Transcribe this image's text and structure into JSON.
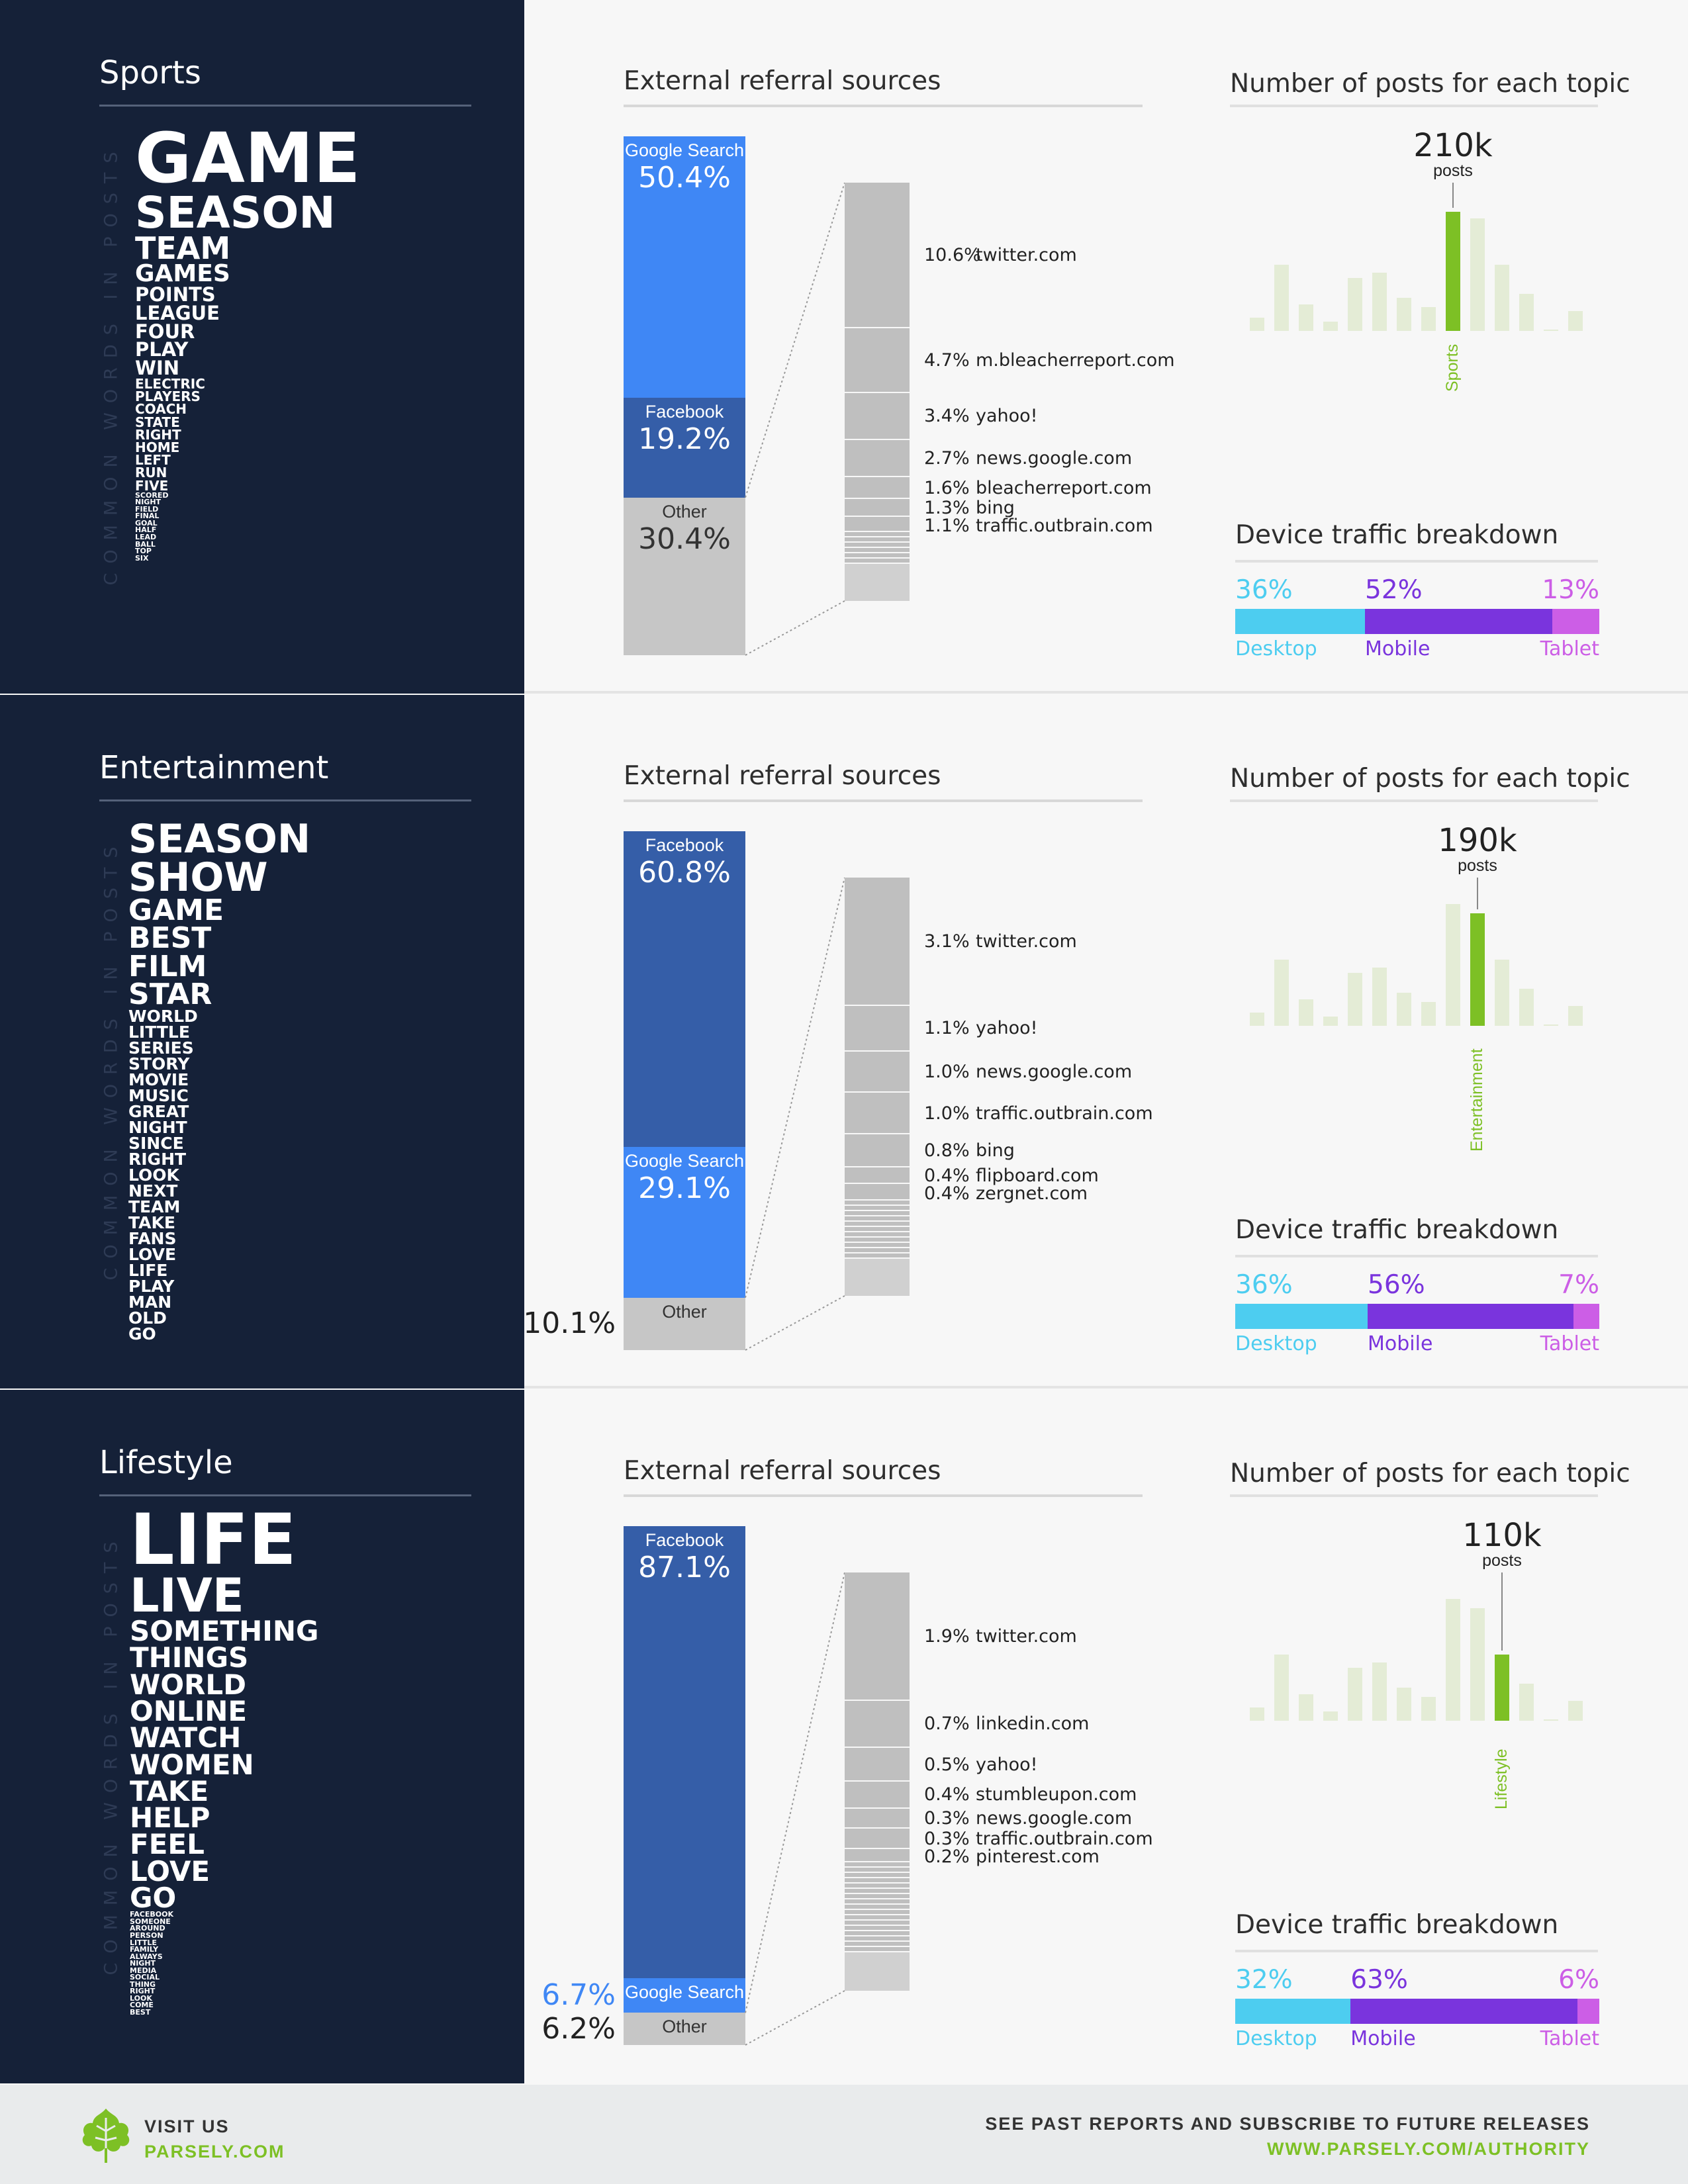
{
  "chart_data": [
    {
      "type": "bar",
      "topic": "Sports",
      "words_label": "COMMON WORDS IN POSTS",
      "words": [
        {
          "text": "GAME",
          "size": 104
        },
        {
          "text": "SEASON",
          "size": 66
        },
        {
          "text": "TEAM",
          "size": 46
        },
        {
          "text": "GAMES",
          "size": 36
        },
        {
          "text": "POINTS",
          "size": 29
        },
        {
          "text": "LEAGUE",
          "size": 29
        },
        {
          "text": "FOUR",
          "size": 29
        },
        {
          "text": "PLAY",
          "size": 29
        },
        {
          "text": "WIN",
          "size": 29
        },
        {
          "text": "ELECTRIC",
          "size": 20
        },
        {
          "text": "PLAYERS",
          "size": 20
        },
        {
          "text": "COACH",
          "size": 20
        },
        {
          "text": "STATE",
          "size": 20
        },
        {
          "text": "RIGHT",
          "size": 20
        },
        {
          "text": "HOME",
          "size": 20
        },
        {
          "text": "LEFT",
          "size": 20
        },
        {
          "text": "RUN",
          "size": 20
        },
        {
          "text": "FIVE",
          "size": 20
        },
        {
          "text": "SCORED",
          "size": 11
        },
        {
          "text": "NIGHT",
          "size": 11
        },
        {
          "text": "FIELD",
          "size": 11
        },
        {
          "text": "FINAL",
          "size": 11
        },
        {
          "text": "GOAL",
          "size": 11
        },
        {
          "text": "HALF",
          "size": 11
        },
        {
          "text": "LEAD",
          "size": 11
        },
        {
          "text": "BALL",
          "size": 11
        },
        {
          "text": "TOP",
          "size": 11
        },
        {
          "text": "SIX",
          "size": 11
        }
      ],
      "referral_title": "External referral sources",
      "referral": [
        {
          "name": "Google Search",
          "value": 50.4,
          "pct": "50.4%",
          "color": "#3f87f5"
        },
        {
          "name": "Facebook",
          "value": 19.2,
          "pct": "19.2%",
          "color": "#355ea8"
        },
        {
          "name": "Other",
          "value": 30.4,
          "pct": "30.4%",
          "color": "#c6c6c6"
        }
      ],
      "other_breakdown": [
        {
          "pct": "10.6%",
          "value": 10.6,
          "site": "twitter.com"
        },
        {
          "pct": "4.7%",
          "value": 4.7,
          "site": "m.bleacherreport.com"
        },
        {
          "pct": "3.4%",
          "value": 3.4,
          "site": "yahoo!"
        },
        {
          "pct": "2.7%",
          "value": 2.7,
          "site": "news.google.com"
        },
        {
          "pct": "1.6%",
          "value": 1.6,
          "site": "bleacherreport.com"
        },
        {
          "pct": "1.3%",
          "value": 1.3,
          "site": "bing"
        },
        {
          "pct": "1.1%",
          "value": 1.1,
          "site": "traffic.outbrain.com"
        }
      ],
      "posts_title": "Number of posts for each topic",
      "posts_count": "210k",
      "posts_word": "posts",
      "topic_bars": [
        0.1,
        0.5,
        0.2,
        0.07,
        0.4,
        0.44,
        0.25,
        0.18,
        0.9,
        0.85,
        0.5,
        0.28,
        0.01,
        0.15
      ],
      "highlight_index": 8,
      "device_title": "Device traffic breakdown",
      "device": [
        {
          "name": "Desktop",
          "value": 36,
          "pct": "36%",
          "color": "#4dcdf0"
        },
        {
          "name": "Mobile",
          "value": 52,
          "pct": "52%",
          "color": "#7a34dd"
        },
        {
          "name": "Tablet",
          "value": 13,
          "pct": "13%",
          "color": "#cc5ee6"
        }
      ]
    },
    {
      "type": "bar",
      "topic": "Entertainment",
      "words_label": "COMMON WORDS IN POSTS",
      "words": [
        {
          "text": "SEASON",
          "size": 60
        },
        {
          "text": "SHOW",
          "size": 60
        },
        {
          "text": "GAME",
          "size": 44
        },
        {
          "text": "BEST",
          "size": 44
        },
        {
          "text": "FILM",
          "size": 44
        },
        {
          "text": "STAR",
          "size": 44
        },
        {
          "text": "WORLD",
          "size": 25
        },
        {
          "text": "LITTLE",
          "size": 25
        },
        {
          "text": "SERIES",
          "size": 25
        },
        {
          "text": "STORY",
          "size": 25
        },
        {
          "text": "MOVIE",
          "size": 25
        },
        {
          "text": "MUSIC",
          "size": 25
        },
        {
          "text": "GREAT",
          "size": 25
        },
        {
          "text": "NIGHT",
          "size": 25
        },
        {
          "text": "SINCE",
          "size": 25
        },
        {
          "text": "RIGHT",
          "size": 25
        },
        {
          "text": "LOOK",
          "size": 25
        },
        {
          "text": "NEXT",
          "size": 25
        },
        {
          "text": "TEAM",
          "size": 25
        },
        {
          "text": "TAKE",
          "size": 25
        },
        {
          "text": "FANS",
          "size": 25
        },
        {
          "text": "LOVE",
          "size": 25
        },
        {
          "text": "LIFE",
          "size": 25
        },
        {
          "text": "PLAY",
          "size": 25
        },
        {
          "text": "MAN",
          "size": 25
        },
        {
          "text": "OLD",
          "size": 25
        },
        {
          "text": "GO",
          "size": 25
        }
      ],
      "referral_title": "External referral sources",
      "referral": [
        {
          "name": "Facebook",
          "value": 60.8,
          "pct": "60.8%",
          "color": "#355ea8"
        },
        {
          "name": "Google Search",
          "value": 29.1,
          "pct": "29.1%",
          "color": "#3f87f5"
        },
        {
          "name": "Other",
          "value": 10.1,
          "pct": "10.1%",
          "color": "#c6c6c6"
        }
      ],
      "other_breakdown": [
        {
          "pct": "3.1%",
          "value": 3.1,
          "site": "twitter.com"
        },
        {
          "pct": "1.1%",
          "value": 1.1,
          "site": "yahoo!"
        },
        {
          "pct": "1.0%",
          "value": 1.0,
          "site": "news.google.com"
        },
        {
          "pct": "1.0%",
          "value": 1.0,
          "site": "traffic.outbrain.com"
        },
        {
          "pct": "0.8%",
          "value": 0.8,
          "site": "bing"
        },
        {
          "pct": "0.4%",
          "value": 0.4,
          "site": "flipboard.com"
        },
        {
          "pct": "0.4%",
          "value": 0.4,
          "site": "zergnet.com"
        }
      ],
      "posts_title": "Number of posts for each topic",
      "posts_count": "190k",
      "posts_word": "posts",
      "topic_bars": [
        0.1,
        0.5,
        0.2,
        0.07,
        0.4,
        0.44,
        0.25,
        0.18,
        0.92,
        0.85,
        0.5,
        0.28,
        0.01,
        0.15
      ],
      "highlight_index": 9,
      "device_title": "Device traffic breakdown",
      "device": [
        {
          "name": "Desktop",
          "value": 36,
          "pct": "36%",
          "color": "#4dcdf0"
        },
        {
          "name": "Mobile",
          "value": 56,
          "pct": "56%",
          "color": "#7a34dd"
        },
        {
          "name": "Tablet",
          "value": 7,
          "pct": "7%",
          "color": "#cc5ee6"
        }
      ]
    },
    {
      "type": "bar",
      "topic": "Lifestyle",
      "words_label": "COMMON WORDS IN POSTS",
      "words": [
        {
          "text": "LIFE",
          "size": 106
        },
        {
          "text": "LIVE",
          "size": 70
        },
        {
          "text": "SOMETHING",
          "size": 42
        },
        {
          "text": "THINGS",
          "size": 42
        },
        {
          "text": "WORLD",
          "size": 42
        },
        {
          "text": "ONLINE",
          "size": 42
        },
        {
          "text": "WATCH",
          "size": 42
        },
        {
          "text": "WOMEN",
          "size": 42
        },
        {
          "text": "TAKE",
          "size": 42
        },
        {
          "text": "HELP",
          "size": 42
        },
        {
          "text": "FEEL",
          "size": 42
        },
        {
          "text": "LOVE",
          "size": 42
        },
        {
          "text": "GO",
          "size": 42
        },
        {
          "text": "FACEBOOK",
          "size": 11
        },
        {
          "text": "SOMEONE",
          "size": 11
        },
        {
          "text": "AROUND",
          "size": 11
        },
        {
          "text": "PERSON",
          "size": 11
        },
        {
          "text": "LITTLE",
          "size": 11
        },
        {
          "text": "FAMILY",
          "size": 11
        },
        {
          "text": "ALWAYS",
          "size": 11
        },
        {
          "text": "NIGHT",
          "size": 11
        },
        {
          "text": "MEDIA",
          "size": 11
        },
        {
          "text": "SOCIAL",
          "size": 11
        },
        {
          "text": "THING",
          "size": 11
        },
        {
          "text": "RIGHT",
          "size": 11
        },
        {
          "text": "LOOK",
          "size": 11
        },
        {
          "text": "COME",
          "size": 11
        },
        {
          "text": "BEST",
          "size": 11
        }
      ],
      "referral_title": "External referral sources",
      "referral": [
        {
          "name": "Facebook",
          "value": 87.1,
          "pct": "87.1%",
          "color": "#355ea8"
        },
        {
          "name": "Google Search",
          "value": 6.7,
          "pct": "6.7%",
          "color": "#3f87f5"
        },
        {
          "name": "Other",
          "value": 6.2,
          "pct": "6.2%",
          "color": "#c6c6c6"
        }
      ],
      "other_breakdown": [
        {
          "pct": "1.9%",
          "value": 1.9,
          "site": "twitter.com"
        },
        {
          "pct": "0.7%",
          "value": 0.7,
          "site": "linkedin.com"
        },
        {
          "pct": "0.5%",
          "value": 0.5,
          "site": "yahoo!"
        },
        {
          "pct": "0.4%",
          "value": 0.4,
          "site": "stumbleupon.com"
        },
        {
          "pct": "0.3%",
          "value": 0.3,
          "site": "news.google.com"
        },
        {
          "pct": "0.3%",
          "value": 0.3,
          "site": "traffic.outbrain.com"
        },
        {
          "pct": "0.2%",
          "value": 0.2,
          "site": "pinterest.com"
        }
      ],
      "posts_title": "Number of posts for each topic",
      "posts_count": "110k",
      "posts_word": "posts",
      "topic_bars": [
        0.1,
        0.5,
        0.2,
        0.07,
        0.4,
        0.44,
        0.25,
        0.18,
        0.92,
        0.85,
        0.5,
        0.28,
        0.01,
        0.15
      ],
      "highlight_index": 10,
      "device_title": "Device traffic breakdown",
      "device": [
        {
          "name": "Desktop",
          "value": 32,
          "pct": "32%",
          "color": "#4dcdf0"
        },
        {
          "name": "Mobile",
          "value": 63,
          "pct": "63%",
          "color": "#7a34dd"
        },
        {
          "name": "Tablet",
          "value": 6,
          "pct": "6%",
          "color": "#cc5ee6"
        }
      ]
    }
  ],
  "footer": {
    "visit": "VISIT US",
    "site": "PARSELY.COM",
    "past": "SEE PAST REPORTS AND SUBSCRIBE TO FUTURE RELEASES",
    "url": "WWW.PARSELY.COM/AUTHORITY"
  }
}
